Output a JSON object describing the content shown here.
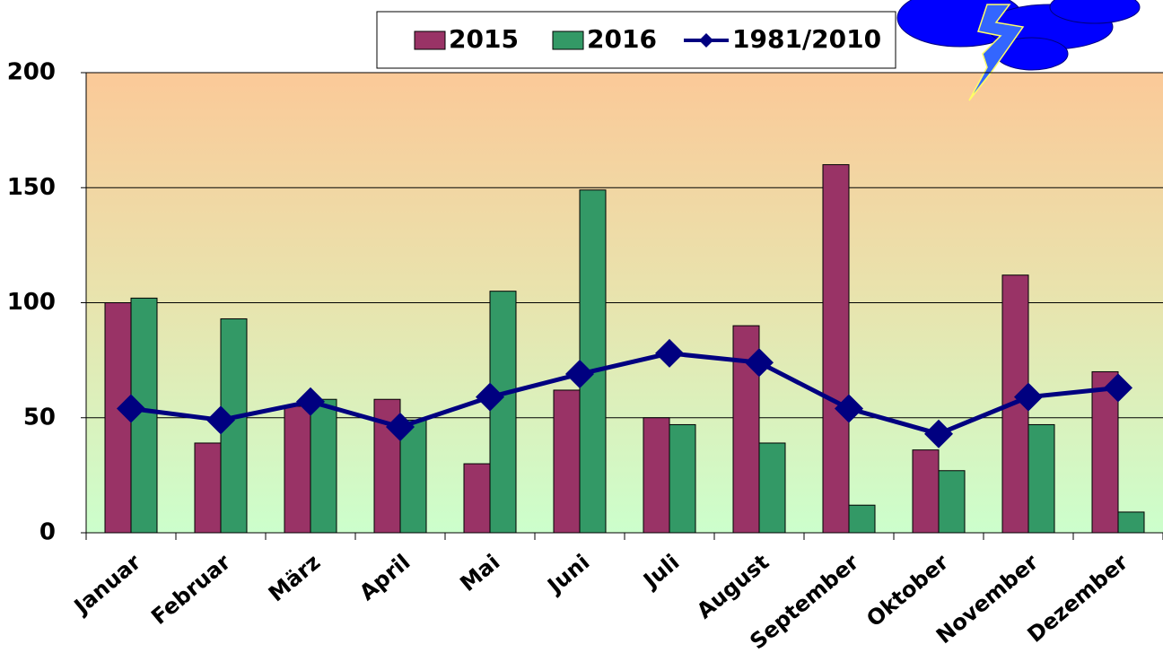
{
  "chart_data": {
    "type": "bar_line",
    "categories": [
      "Januar",
      "Februar",
      "März",
      "April",
      "Mai",
      "Juni",
      "Juli",
      "August",
      "September",
      "Oktober",
      "November",
      "Dezember"
    ],
    "series": [
      {
        "name": "2015",
        "color": "#993366",
        "type": "bar",
        "values": [
          100,
          39,
          55,
          58,
          30,
          62,
          50,
          90,
          160,
          36,
          112,
          70
        ]
      },
      {
        "name": "2016",
        "color": "#339966",
        "type": "bar",
        "values": [
          102,
          93,
          58,
          49,
          105,
          149,
          47,
          39,
          12,
          27,
          47,
          9
        ]
      },
      {
        "name": "1981/2010",
        "color": "#000080",
        "type": "line",
        "values": [
          54,
          49,
          57,
          46,
          59,
          69,
          78,
          74,
          54,
          43,
          59,
          63
        ]
      }
    ],
    "ylim": [
      0,
      200
    ],
    "yticks": [
      0,
      50,
      100,
      150,
      200
    ],
    "grid": true
  }
}
